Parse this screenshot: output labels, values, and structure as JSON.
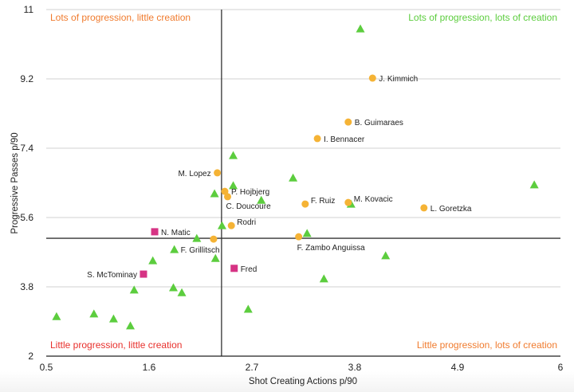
{
  "chart_data": {
    "type": "scatter",
    "title": "",
    "xlabel": "Shot Creating Actions p/90",
    "ylabel": "Progressive Passes p/90",
    "xlim": [
      0.5,
      6
    ],
    "ylim": [
      2,
      11
    ],
    "xticks": [
      "0.5",
      "1.6",
      "2.7",
      "3.8",
      "4.9",
      "6"
    ],
    "yticks": [
      "2",
      "3.8",
      "5.6",
      "7.4",
      "9.2",
      "11"
    ],
    "grid": "horizontal",
    "reference_lines": {
      "x": 2.375,
      "y": 5.06
    },
    "quadrant_labels": [
      {
        "position": "top-left",
        "text": "Lots of progression, little creation",
        "color": "#f07b2e"
      },
      {
        "position": "top-right",
        "text": "Lots of progression, lots of creation",
        "color": "#5ccd3e"
      },
      {
        "position": "bottom-left",
        "text": "Little progression, little creation",
        "color": "#e8302c"
      },
      {
        "position": "bottom-right",
        "text": "Little progression, lots of creation",
        "color": "#f07b2e"
      }
    ],
    "series": [
      {
        "name": "circles",
        "marker": "circle",
        "color": "#f5b335",
        "points": [
          {
            "x": 3.99,
            "y": 9.22,
            "label": "J. Kimmich",
            "label_side": "right"
          },
          {
            "x": 3.73,
            "y": 8.08,
            "label": "B. Guimaraes",
            "label_side": "right"
          },
          {
            "x": 3.4,
            "y": 7.65,
            "label": "I. Bennacer",
            "label_side": "right"
          },
          {
            "x": 2.33,
            "y": 6.76,
            "label": "M. Lopez",
            "label_side": "left"
          },
          {
            "x": 2.41,
            "y": 6.28,
            "label": "P. Hojbjerg",
            "label_side": "right"
          },
          {
            "x": 2.44,
            "y": 6.14,
            "label": "C. Doucoure",
            "label_side": "below-right"
          },
          {
            "x": 3.27,
            "y": 5.95,
            "label": "F. Ruiz",
            "label_side": "right-up"
          },
          {
            "x": 3.73,
            "y": 5.99,
            "label": "M. Kovacic",
            "label_side": "right-up"
          },
          {
            "x": 4.54,
            "y": 5.85,
            "label": "L. Goretzka",
            "label_side": "right"
          },
          {
            "x": 2.48,
            "y": 5.39,
            "label": "Rodri",
            "label_side": "right-up"
          },
          {
            "x": 2.29,
            "y": 5.04,
            "label": "",
            "label_side": ""
          },
          {
            "x": 3.2,
            "y": 5.1,
            "label": "F. Zambo Anguissa",
            "label_side": "below"
          }
        ]
      },
      {
        "name": "squares",
        "marker": "square",
        "color": "#d63384",
        "points": [
          {
            "x": 1.66,
            "y": 5.23,
            "label": "N. Matic",
            "label_side": "right"
          },
          {
            "x": 1.54,
            "y": 4.13,
            "label": "S. McTominay",
            "label_side": "left"
          },
          {
            "x": 2.51,
            "y": 4.28,
            "label": "Fred",
            "label_side": "right"
          }
        ]
      },
      {
        "name": "triangles",
        "marker": "triangle",
        "color": "#5ccd3e",
        "points": [
          {
            "x": 3.86,
            "y": 10.5,
            "label": ""
          },
          {
            "x": 2.5,
            "y": 7.21,
            "label": ""
          },
          {
            "x": 5.72,
            "y": 6.45,
            "label": ""
          },
          {
            "x": 3.14,
            "y": 6.63,
            "label": ""
          },
          {
            "x": 2.3,
            "y": 6.22,
            "label": ""
          },
          {
            "x": 2.5,
            "y": 6.43,
            "label": ""
          },
          {
            "x": 2.8,
            "y": 6.05,
            "label": ""
          },
          {
            "x": 3.76,
            "y": 5.95,
            "label": ""
          },
          {
            "x": 2.38,
            "y": 5.39,
            "label": ""
          },
          {
            "x": 2.11,
            "y": 5.06,
            "label": ""
          },
          {
            "x": 3.29,
            "y": 5.19,
            "label": ""
          },
          {
            "x": 1.87,
            "y": 4.77,
            "label": "F. Grillitsch",
            "label_side": "right"
          },
          {
            "x": 2.31,
            "y": 4.54,
            "label": ""
          },
          {
            "x": 1.64,
            "y": 4.48,
            "label": ""
          },
          {
            "x": 4.13,
            "y": 4.61,
            "label": ""
          },
          {
            "x": 3.47,
            "y": 4.01,
            "label": ""
          },
          {
            "x": 1.44,
            "y": 3.72,
            "label": ""
          },
          {
            "x": 1.86,
            "y": 3.78,
            "label": ""
          },
          {
            "x": 1.95,
            "y": 3.65,
            "label": ""
          },
          {
            "x": 2.66,
            "y": 3.22,
            "label": ""
          },
          {
            "x": 0.61,
            "y": 3.03,
            "label": ""
          },
          {
            "x": 1.01,
            "y": 3.1,
            "label": ""
          },
          {
            "x": 1.22,
            "y": 2.97,
            "label": ""
          },
          {
            "x": 1.4,
            "y": 2.79,
            "label": ""
          }
        ]
      }
    ]
  }
}
